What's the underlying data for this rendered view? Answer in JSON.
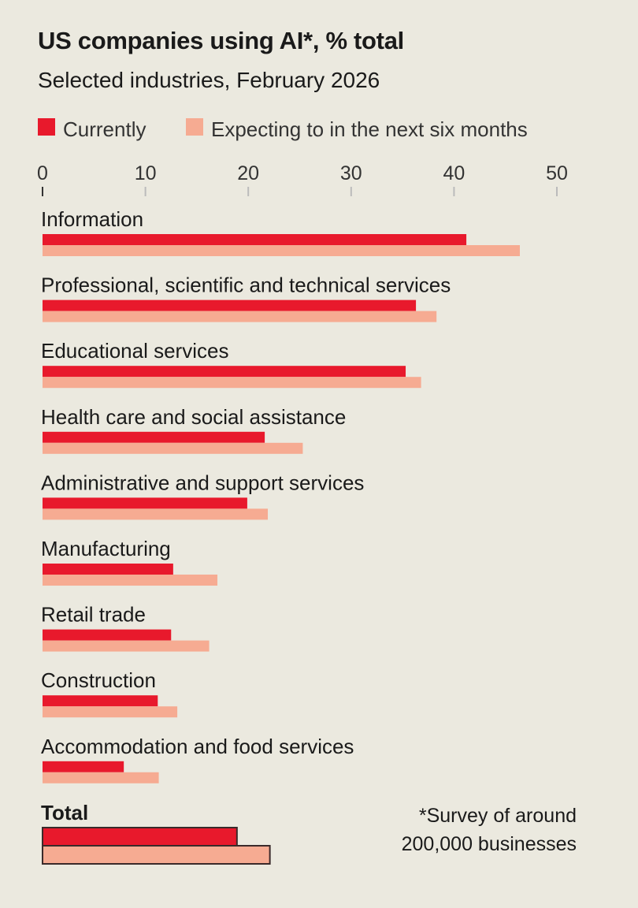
{
  "chart_data": {
    "type": "bar",
    "orientation": "horizontal",
    "title": "US companies using AI*, % total",
    "subtitle": "Selected industries, February 2026",
    "xlim": [
      0,
      50
    ],
    "x_ticks": [
      "0",
      "10",
      "20",
      "30",
      "40",
      "50"
    ],
    "axis_position": "top",
    "grid": false,
    "legend_placement": "top-left",
    "categories": [
      "Information",
      "Professional, scientific and technical services",
      "Educational services",
      "Health care and social assistance",
      "Administrative and support services",
      "Manufacturing",
      "Retail trade",
      "Construction",
      "Accommodation and food services",
      "Total"
    ],
    "series": [
      {
        "name": "Currently",
        "color": "#e8192c",
        "values": [
          41.2,
          36.3,
          35.3,
          21.6,
          19.9,
          12.7,
          12.5,
          11.2,
          7.9,
          18.9
        ]
      },
      {
        "name": "Expecting to in the next six months",
        "color": "#f6ab92",
        "values": [
          46.4,
          38.3,
          36.8,
          25.3,
          21.9,
          17.0,
          16.2,
          13.1,
          11.3,
          22.1
        ]
      }
    ],
    "footnote": [
      "*Survey of around",
      "200,000 businesses"
    ]
  }
}
